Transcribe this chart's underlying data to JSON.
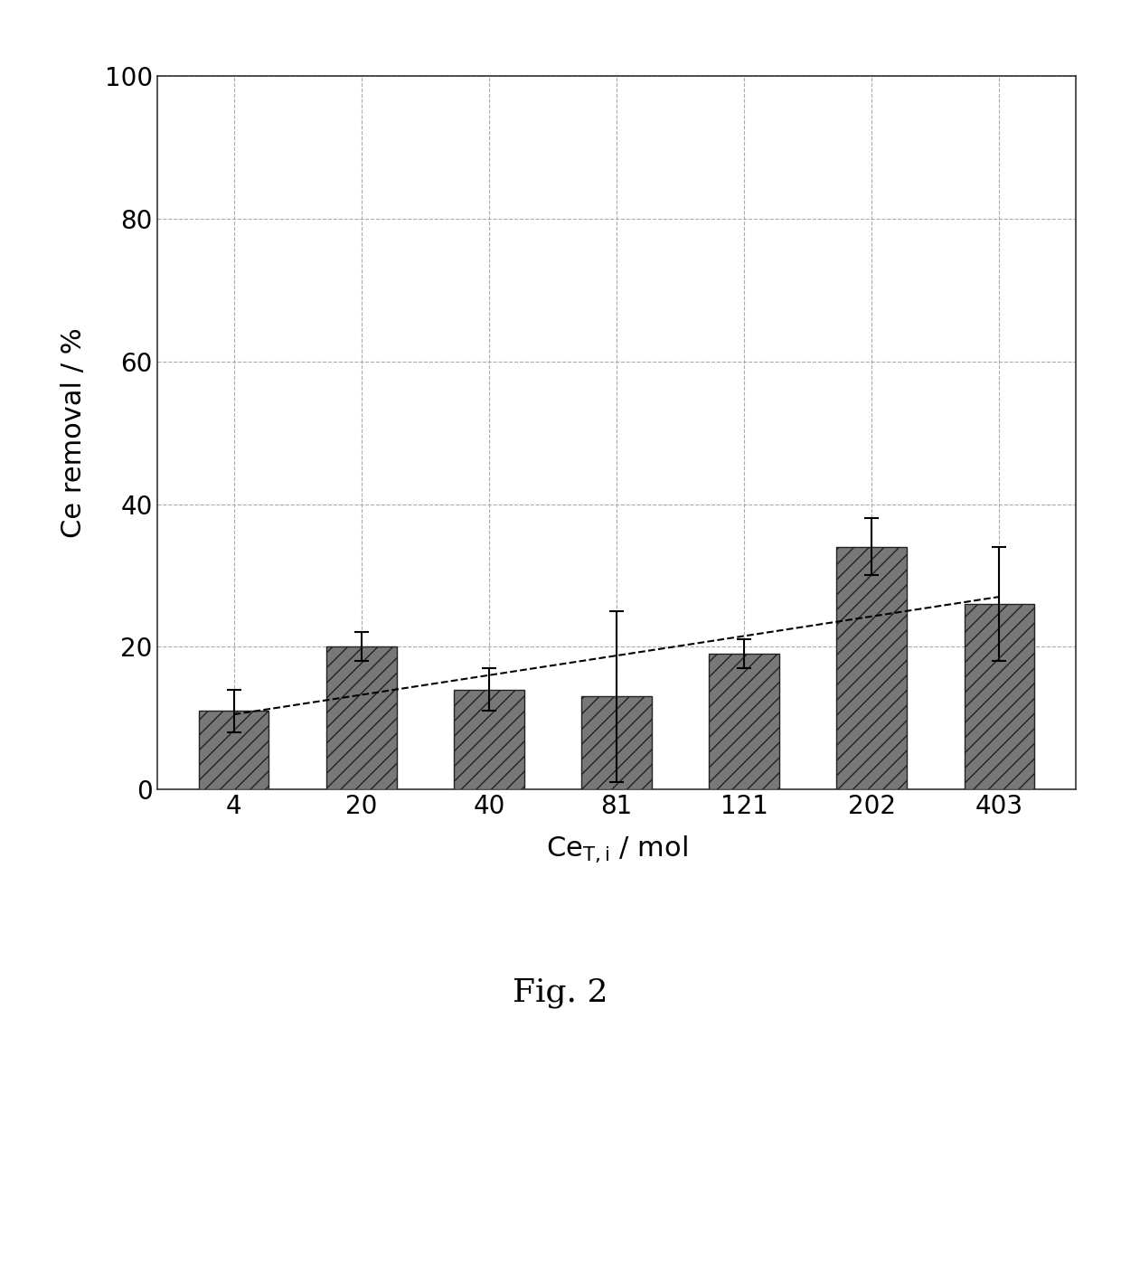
{
  "categories": [
    "4",
    "20",
    "40",
    "81",
    "121",
    "202",
    "403"
  ],
  "values": [
    11,
    20,
    14,
    13,
    19,
    34,
    26
  ],
  "errors": [
    3,
    2,
    3,
    12,
    2,
    4,
    8
  ],
  "bar_color": "#787878",
  "bar_edgecolor": "#222222",
  "xlabel": "Ce$_\\mathrm{T,i}$ / mol",
  "ylabel": "Ce removal / %",
  "ylim": [
    0,
    100
  ],
  "yticks": [
    0,
    20,
    40,
    60,
    80,
    100
  ],
  "figcaption": "Fig. 2",
  "grid_color": "#aaaaaa",
  "grid_linestyle": "--",
  "background_color": "#ffffff",
  "bar_width": 0.55,
  "label_fontsize": 22,
  "tick_fontsize": 20,
  "caption_fontsize": 26
}
